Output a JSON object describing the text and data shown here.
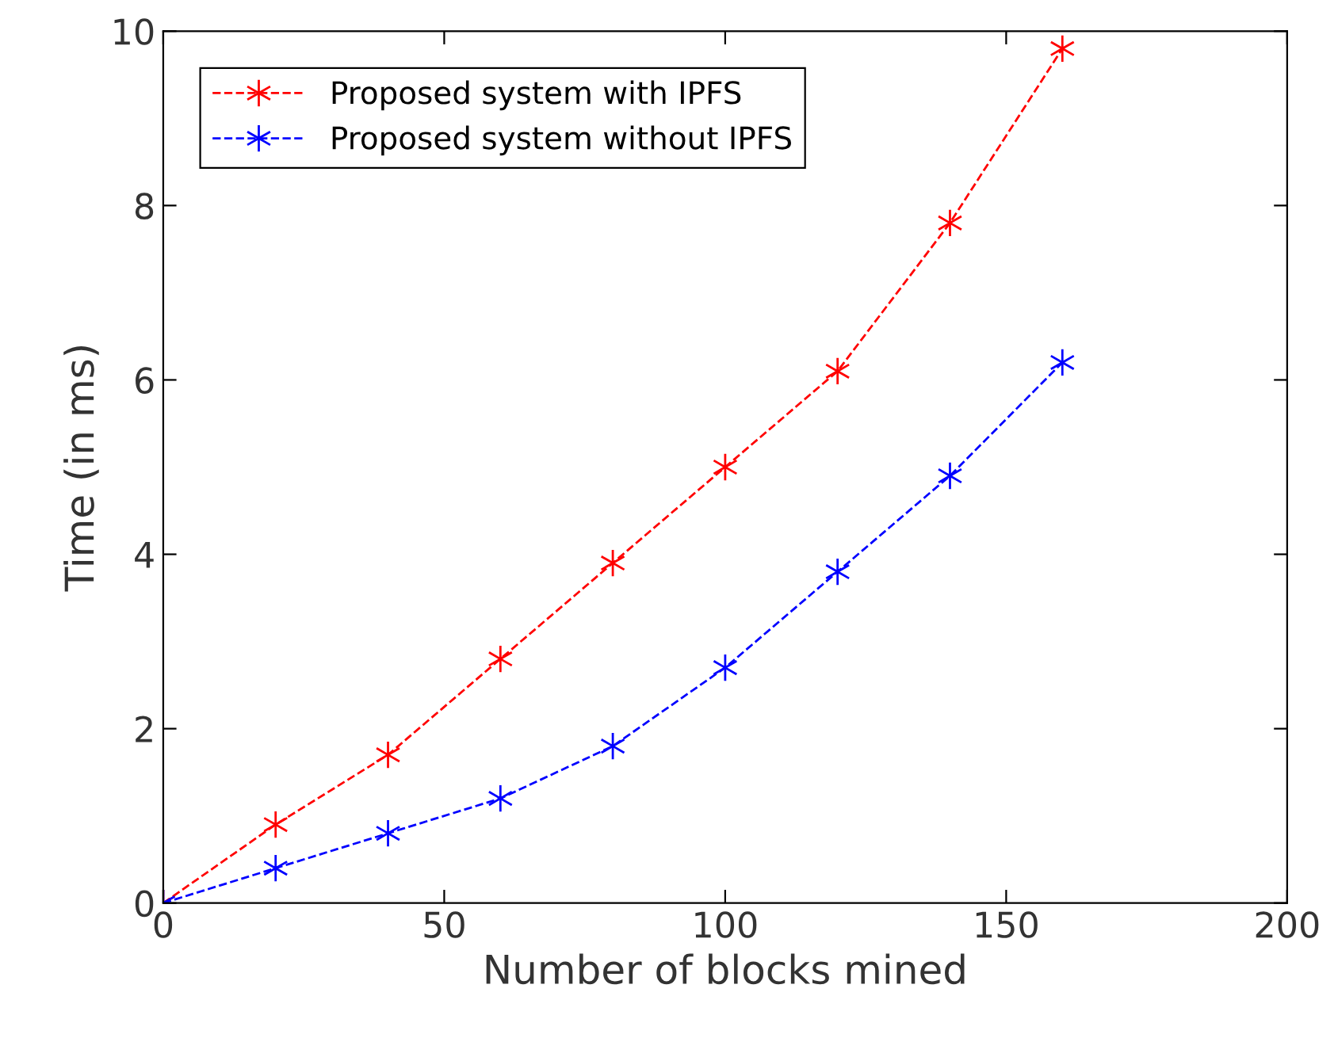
{
  "chart_data": {
    "type": "line",
    "xlabel": "Number of blocks mined",
    "ylabel": "Time (in ms)",
    "x": [
      0,
      20,
      40,
      60,
      80,
      100,
      120,
      140,
      160
    ],
    "series": [
      {
        "name": "Proposed system with IPFS",
        "color": "#ff0000",
        "values": [
          0,
          0.9,
          1.7,
          2.8,
          3.9,
          5.0,
          6.1,
          7.8,
          9.8
        ]
      },
      {
        "name": "Proposed system without IPFS",
        "color": "#0000ff",
        "values": [
          0,
          0.4,
          0.8,
          1.2,
          1.8,
          2.7,
          3.8,
          4.9,
          6.2
        ]
      }
    ],
    "xlim": [
      0,
      200
    ],
    "xticks": [
      0,
      50,
      100,
      150,
      200
    ],
    "ylim": [
      0,
      10
    ],
    "yticks": [
      0,
      2,
      4,
      6,
      8,
      10
    ],
    "grid": false,
    "legend": "top left",
    "marker": "cross",
    "line_style": "dashed"
  }
}
